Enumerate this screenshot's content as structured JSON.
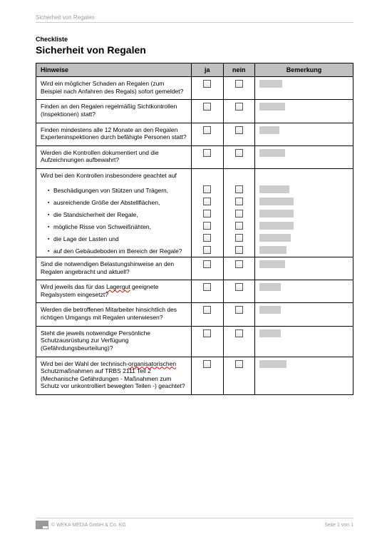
{
  "header_text": "Sicherheit von Regalen",
  "pretitle": "Checkliste",
  "title": "Sicherheit von Regalen",
  "columns": {
    "hint": "Hinweise",
    "yes": "ja",
    "no": "nein",
    "remark": "Bemerkung"
  },
  "rows": [
    {
      "text": "Wird ein möglicher Schaden an Regalen (zum Beispiel nach Anfahren des Regals) sofort gemeldet?",
      "rem_w": 32
    },
    {
      "text": "Finden an den Regalen regelmäßig Sichtkontrollen (Inspektionen) statt?",
      "rem_w": 36
    },
    {
      "text": "Finden mindestens alle 12 Monate an den Regalen Experteninspektionen durch befähigte Personen statt?",
      "rem_w": 28
    },
    {
      "text": "Werden die Kontrollen dokumentiert und die Aufzeichnungen aufbewahrt?",
      "rem_w": 36
    },
    {
      "text": "Wird bei den Kontrollen insbesondere geachtet auf",
      "group_intro": true,
      "subs": [
        {
          "text": "Beschädigungen von Stützen und Trägern,",
          "rem_w": 42
        },
        {
          "text": "ausreichende Größe der Abstellflächen,",
          "rem_w": 48
        },
        {
          "text": "die Standsicherheit der Regale,",
          "rem_w": 48
        },
        {
          "text": "mögliche Risse von Schweißnähten,",
          "rem_w": 48
        },
        {
          "text": "die Lage der Lasten und",
          "rem_w": 44
        },
        {
          "text": "auf den Gebäudeboden im Bereich der Regale?",
          "rem_w": 38
        }
      ]
    },
    {
      "text": "Sind die notwendigen Belastungshinweise an den Regalen angebracht und aktuell?",
      "rem_w": 36
    },
    {
      "text_html": "Wird jeweils das für das <span class=\"squiggle\">Lagergut</span> geeignete Regalsystem eingesetzt?",
      "rem_w": 30
    },
    {
      "text": "Werden die betroffenen Mitarbeiter hinsichtlich des richtigen Umgangs mit Regalen unterwiesen?",
      "rem_w": 30
    },
    {
      "text": "Steht die jeweils notwendige Persönliche Schutzausrüstung zur Verfügung (Gefährdungsbeurteilung)?",
      "rem_w": 30
    },
    {
      "text_html": "Wird bei der Wahl der technisch-<span class=\"squiggle\">organisatorischen</span> Schutzmaßnahmen auf TRBS 2111 Teil 2 (Mechanische Gefährdungen - Maßnahmen zum Schutz vor unkontrolliert bewegten Teilen -) geachtet?",
      "rem_w": 38
    }
  ],
  "footer": {
    "copyright": "© WEKA MEDIA GmbH & Co. KG",
    "page": "Seite 1 von 1"
  }
}
